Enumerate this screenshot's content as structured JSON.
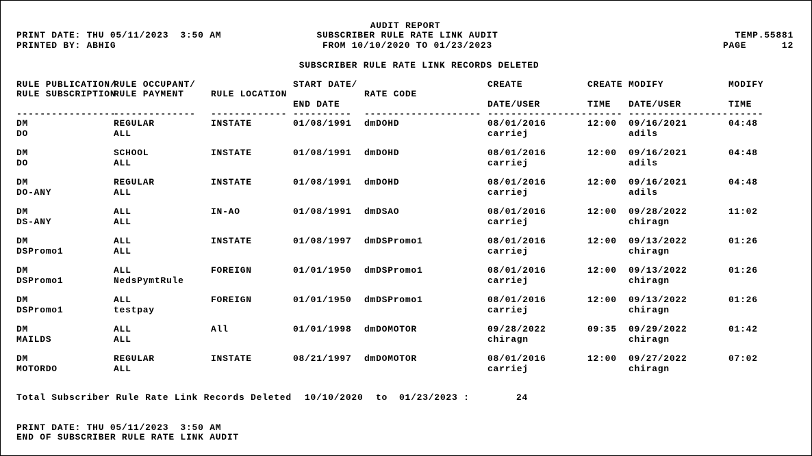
{
  "header": {
    "report_title": "AUDIT REPORT",
    "report_subtitle": "SUBSCRIBER RULE RATE LINK AUDIT",
    "date_range": "FROM 10/10/2020 TO 01/23/2023",
    "print_date": "PRINT DATE: THU 05/11/2023  3:50 AM",
    "printed_by": "PRINTED BY: ABHIG",
    "temp_id": "TEMP.55881",
    "page_label": "PAGE",
    "page_number": "12",
    "section_title": "SUBSCRIBER RULE RATE LINK RECORDS DELETED"
  },
  "columns": {
    "c1": [
      "RULE PUBLICATION/",
      "RULE SUBSCRIPTION"
    ],
    "c2": [
      "RULE OCCUPANT/",
      "RULE PAYMENT"
    ],
    "c3": [
      "RULE LOCATION"
    ],
    "c4": [
      "START DATE/",
      "END DATE"
    ],
    "c5": [
      "RATE CODE"
    ],
    "c6": [
      "CREATE",
      "DATE/USER"
    ],
    "c7": [
      "CREATE",
      "TIME"
    ],
    "c8": [
      "MODIFY",
      "DATE/USER"
    ],
    "c9": [
      "MODIFY",
      "TIME"
    ],
    "dashes": [
      "-----------------",
      "--------------",
      "-------------",
      "----------",
      "--------------------",
      "-----------------",
      "------",
      "-----------------",
      "------"
    ]
  },
  "records": [
    {
      "pub": "DM",
      "sub": "DO",
      "occ": "REGULAR",
      "pay": "ALL",
      "loc": "INSTATE",
      "start": "01/08/1991",
      "rate": "dmDOHD",
      "cdate": "08/01/2016",
      "cuser": "carriej",
      "ctime": "12:00",
      "mdate": "09/16/2021",
      "muser": "adils",
      "mtime": "04:48"
    },
    {
      "pub": "DM",
      "sub": "DO",
      "occ": "SCHOOL",
      "pay": "ALL",
      "loc": "INSTATE",
      "start": "01/08/1991",
      "rate": "dmDOHD",
      "cdate": "08/01/2016",
      "cuser": "carriej",
      "ctime": "12:00",
      "mdate": "09/16/2021",
      "muser": "adils",
      "mtime": "04:48"
    },
    {
      "pub": "DM",
      "sub": "DO-ANY",
      "occ": "REGULAR",
      "pay": "ALL",
      "loc": "INSTATE",
      "start": "01/08/1991",
      "rate": "dmDOHD",
      "cdate": "08/01/2016",
      "cuser": "carriej",
      "ctime": "12:00",
      "mdate": "09/16/2021",
      "muser": "adils",
      "mtime": "04:48"
    },
    {
      "pub": "DM",
      "sub": "DS-ANY",
      "occ": "ALL",
      "pay": "ALL",
      "loc": "IN-AO",
      "start": "01/08/1991",
      "rate": "dmDSAO",
      "cdate": "08/01/2016",
      "cuser": "carriej",
      "ctime": "12:00",
      "mdate": "09/28/2022",
      "muser": "chiragn",
      "mtime": "11:02"
    },
    {
      "pub": "DM",
      "sub": "DSPromo1",
      "occ": "ALL",
      "pay": "ALL",
      "loc": "INSTATE",
      "start": "01/08/1997",
      "rate": "dmDSPromo1",
      "cdate": "08/01/2016",
      "cuser": "carriej",
      "ctime": "12:00",
      "mdate": "09/13/2022",
      "muser": "chiragn",
      "mtime": "01:26"
    },
    {
      "pub": "DM",
      "sub": "DSPromo1",
      "occ": "ALL",
      "pay": "NedsPymtRule",
      "loc": "FOREIGN",
      "start": "01/01/1950",
      "rate": "dmDSPromo1",
      "cdate": "08/01/2016",
      "cuser": "carriej",
      "ctime": "12:00",
      "mdate": "09/13/2022",
      "muser": "chiragn",
      "mtime": "01:26"
    },
    {
      "pub": "DM",
      "sub": "DSPromo1",
      "occ": "ALL",
      "pay": "testpay",
      "loc": "FOREIGN",
      "start": "01/01/1950",
      "rate": "dmDSPromo1",
      "cdate": "08/01/2016",
      "cuser": "carriej",
      "ctime": "12:00",
      "mdate": "09/13/2022",
      "muser": "chiragn",
      "mtime": "01:26"
    },
    {
      "pub": "DM",
      "sub": "MAILDS",
      "occ": "ALL",
      "pay": "ALL",
      "loc": "All",
      "start": "01/01/1998",
      "rate": "dmDOMOTOR",
      "cdate": "09/28/2022",
      "cuser": "chiragn",
      "ctime": "09:35",
      "mdate": "09/29/2022",
      "muser": "chiragn",
      "mtime": "01:42"
    },
    {
      "pub": "DM",
      "sub": "MOTORDO",
      "occ": "REGULAR",
      "pay": "ALL",
      "loc": "INSTATE",
      "start": "08/21/1997",
      "rate": "dmDOMOTOR",
      "cdate": "08/01/2016",
      "cuser": "carriej",
      "ctime": "12:00",
      "mdate": "09/27/2022",
      "muser": "chiragn",
      "mtime": "07:02"
    }
  ],
  "total": {
    "label": "Total Subscriber Rule Rate Link Records Deleted",
    "from": "10/10/2020",
    "to_word": "to",
    "to": "01/23/2023 :",
    "count": "24"
  },
  "footer": {
    "print_date": "PRINT DATE: THU 05/11/2023  3:50 AM",
    "end_text": "END OF SUBSCRIBER RULE RATE LINK AUDIT"
  }
}
